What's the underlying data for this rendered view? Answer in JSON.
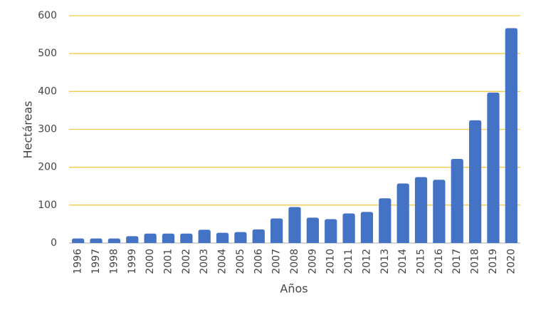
{
  "chart_data": {
    "type": "bar",
    "x_label": "Años",
    "y_label": "Hectáreas",
    "categories": [
      "1996",
      "1997",
      "1998",
      "1999",
      "2000",
      "2001",
      "2002",
      "2003",
      "2004",
      "2005",
      "2006",
      "2007",
      "2008",
      "2009",
      "2010",
      "2011",
      "2012",
      "2013",
      "2014",
      "2015",
      "2016",
      "2017",
      "2018",
      "2019",
      "2020"
    ],
    "values": [
      12,
      12,
      12,
      18,
      25,
      25,
      25,
      35,
      27,
      29,
      36,
      65,
      95,
      67,
      63,
      78,
      82,
      118,
      157,
      174,
      167,
      222,
      324,
      397,
      567
    ],
    "color": "#4472c4",
    "grid_color": "#f7c948",
    "ylim": [
      0,
      600
    ],
    "yticks": [
      0,
      100,
      200,
      300,
      400,
      500,
      600
    ],
    "grid": true
  }
}
